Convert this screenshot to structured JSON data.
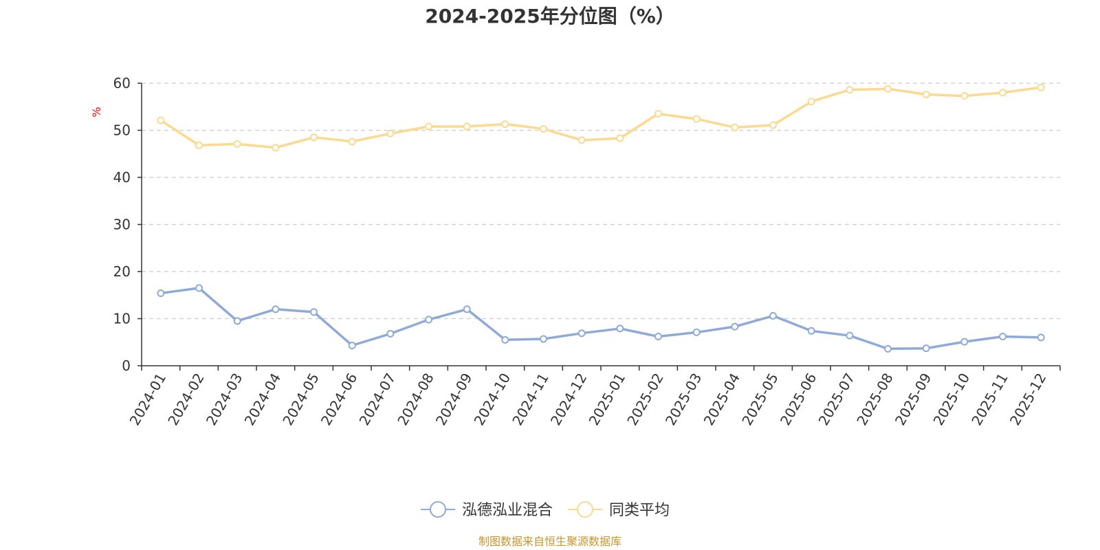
{
  "chart_data": {
    "type": "line",
    "title": "2024-2025年分位图（%）",
    "ylabel": "%",
    "xlabel": "",
    "ylim": [
      0,
      60
    ],
    "yticks": [
      0,
      10,
      20,
      30,
      40,
      50,
      60
    ],
    "grid": true,
    "legend_position": "bottom-center",
    "categories": [
      "2024-01",
      "2024-02",
      "2024-03",
      "2024-04",
      "2024-05",
      "2024-06",
      "2024-07",
      "2024-08",
      "2024-09",
      "2024-10",
      "2024-11",
      "2024-12",
      "2025-01",
      "2025-02",
      "2025-03",
      "2025-04",
      "2025-05",
      "2025-06",
      "2025-07",
      "2025-08",
      "2025-09",
      "2025-10",
      "2025-11",
      "2025-12"
    ],
    "series": [
      {
        "name": "泓德泓业混合",
        "color": "#8eaad8",
        "values": [
          15.4,
          16.5,
          9.5,
          12.0,
          11.4,
          4.3,
          6.8,
          9.8,
          12.0,
          5.5,
          5.7,
          6.9,
          7.9,
          6.2,
          7.1,
          8.3,
          10.6,
          7.4,
          6.4,
          3.6,
          3.7,
          5.1,
          6.2,
          6.0
        ]
      },
      {
        "name": "同类平均",
        "color": "#fbd98f",
        "values": [
          52.1,
          46.8,
          47.1,
          46.3,
          48.5,
          47.6,
          49.3,
          50.8,
          50.8,
          51.3,
          50.3,
          47.9,
          48.3,
          53.5,
          52.4,
          50.6,
          51.1,
          56.1,
          58.6,
          58.8,
          57.6,
          57.3,
          58.0,
          59.1
        ]
      }
    ],
    "source": "制图数据来自恒生聚源数据库",
    "colors": {
      "axis": "#333333",
      "grid": "#cccccc",
      "y_unit": "#ff0000",
      "source": "#c8952c",
      "title": "#333333"
    }
  }
}
